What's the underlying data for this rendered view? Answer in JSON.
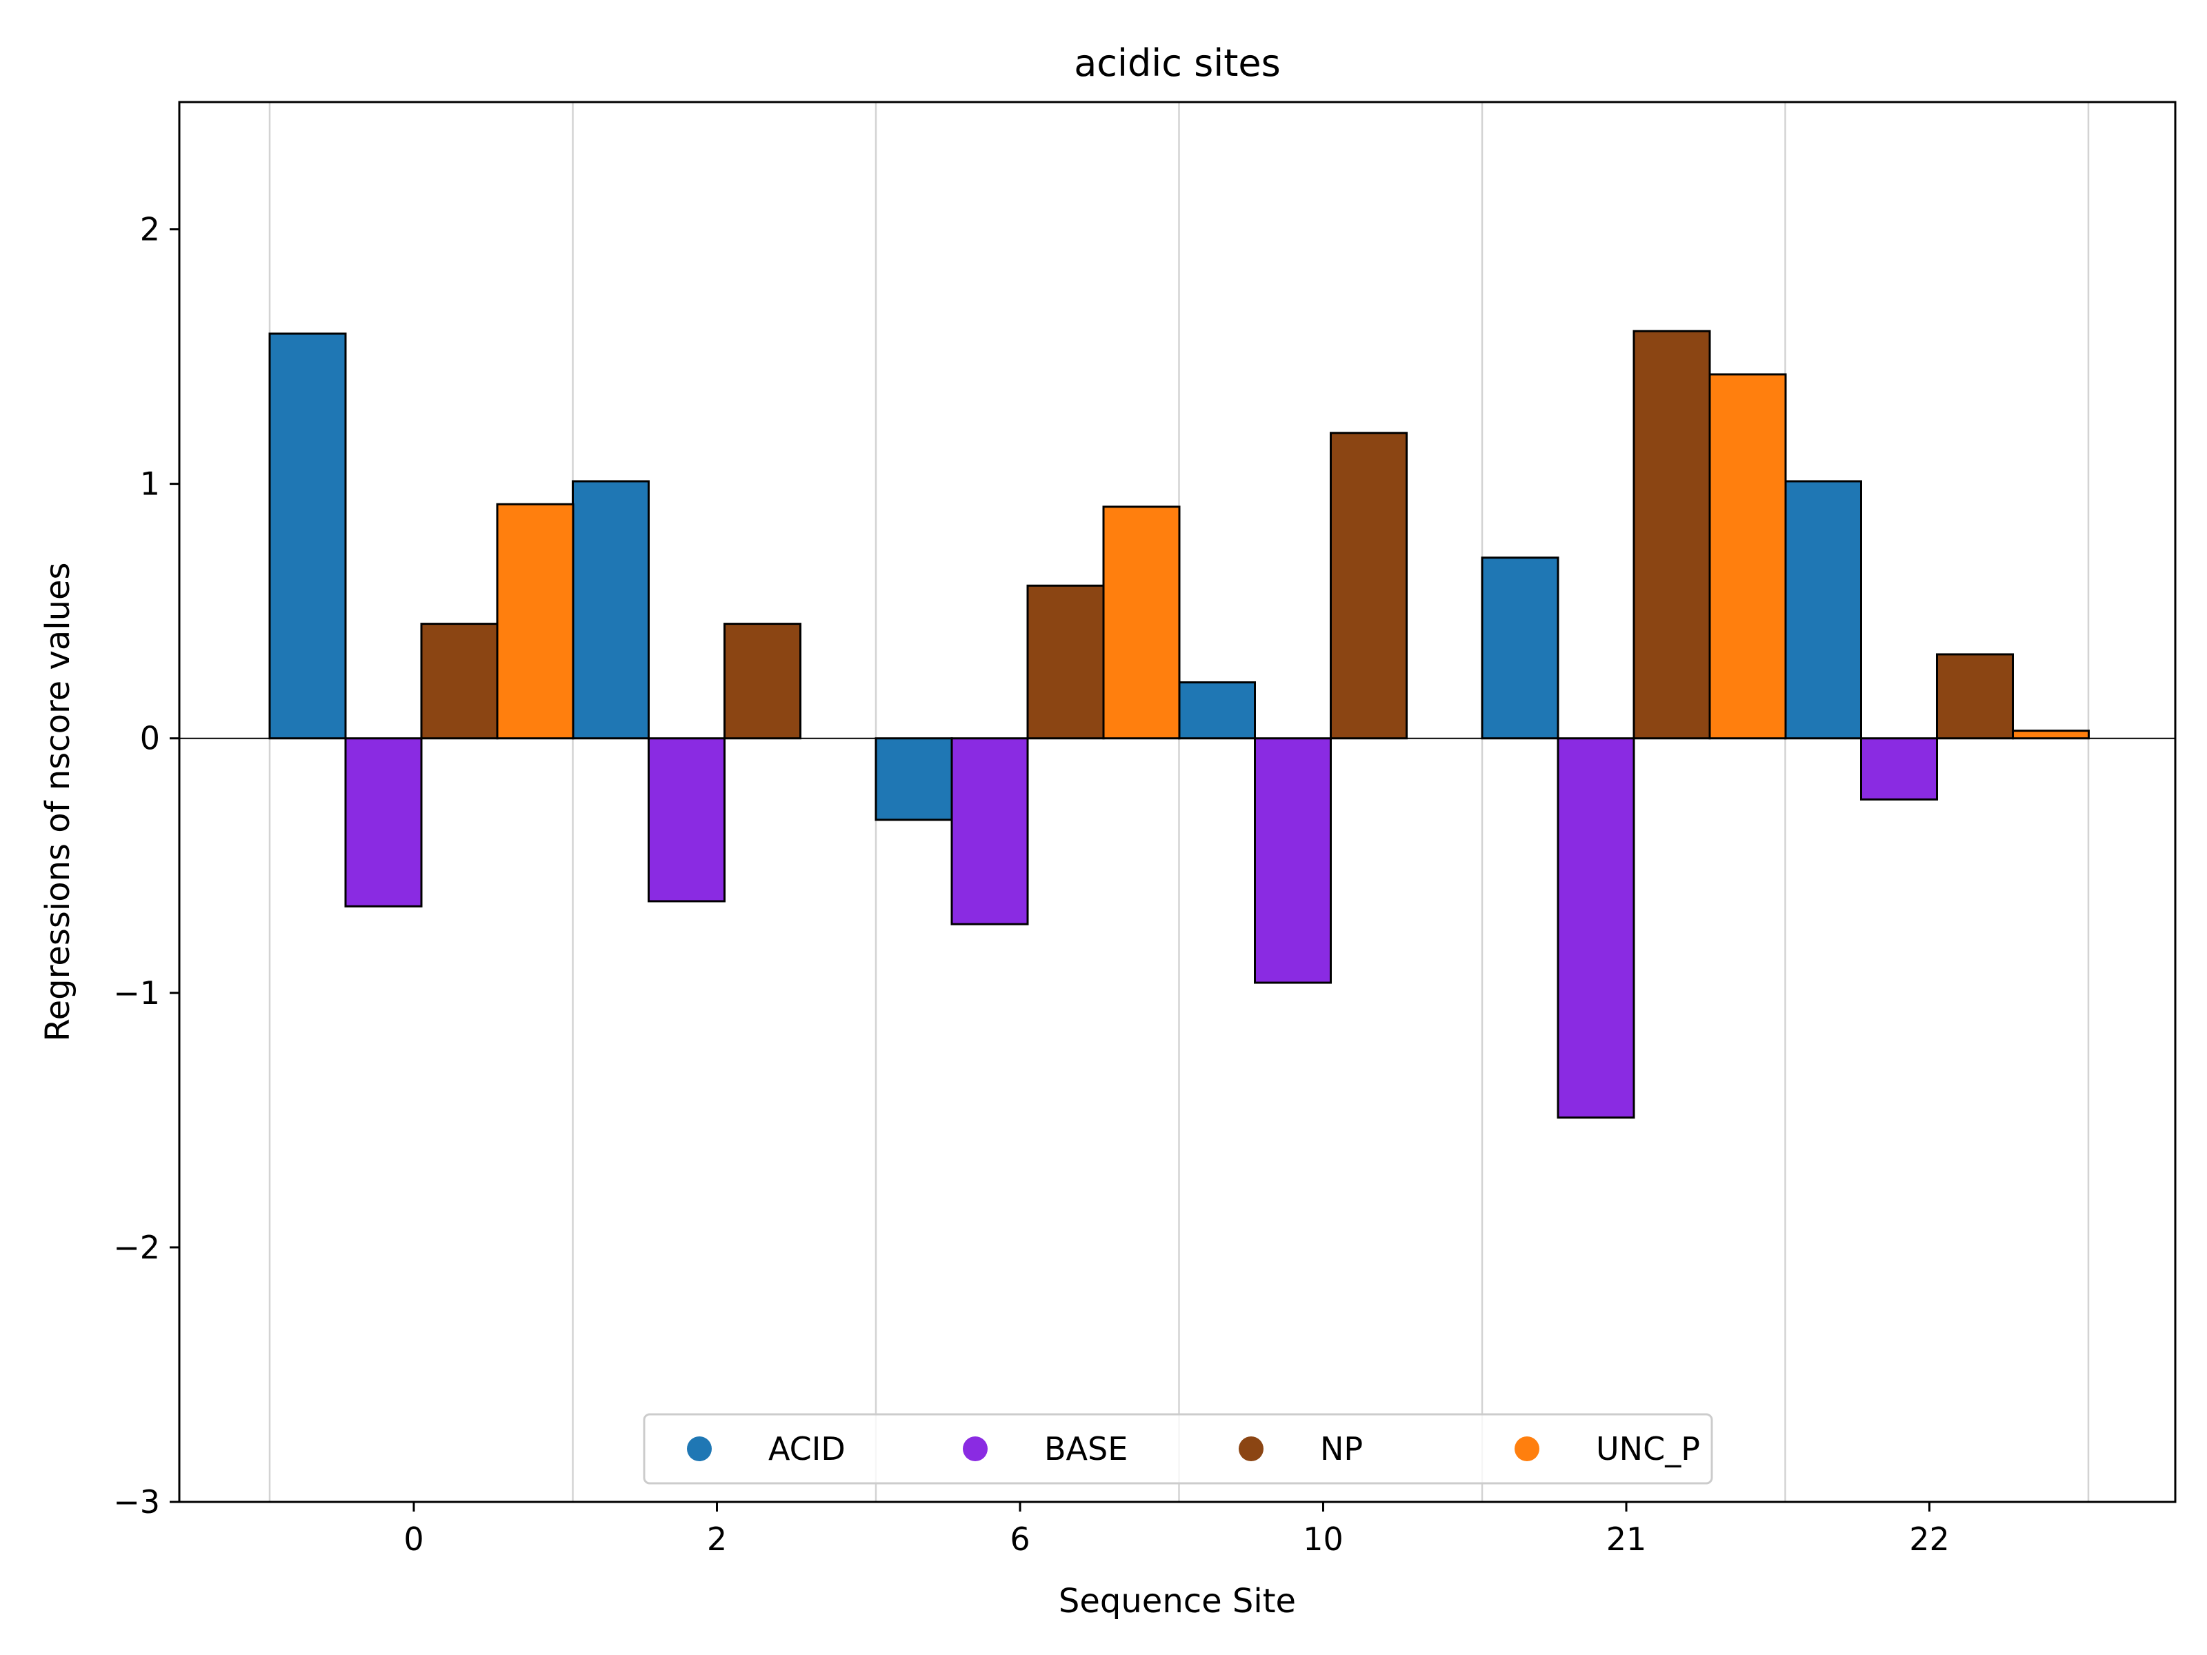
{
  "chart_data": {
    "type": "bar",
    "title": "acidic sites",
    "xlabel": "Sequence Site",
    "ylabel": "Regressions of nscore values",
    "categories": [
      "0",
      "2",
      "6",
      "10",
      "21",
      "22"
    ],
    "ylim": [
      -3,
      2.5
    ],
    "yticks": [
      2,
      1,
      0,
      -1,
      -2,
      -3
    ],
    "ytick_labels": [
      "2",
      "1",
      "0",
      "−1",
      "−2",
      "−3"
    ],
    "grid": "vertical",
    "legend_position": "lower center",
    "series": [
      {
        "name": "ACID",
        "color": "#1f77b4",
        "values": [
          1.59,
          1.01,
          -0.32,
          0.22,
          0.71,
          1.01
        ]
      },
      {
        "name": "BASE",
        "color": "#8a2be2",
        "values": [
          -0.66,
          -0.64,
          -0.73,
          -0.96,
          -1.49,
          -0.24
        ]
      },
      {
        "name": "NP",
        "color": "#8b4513",
        "values": [
          0.45,
          0.45,
          0.6,
          1.2,
          1.6,
          0.33
        ]
      },
      {
        "name": "UNC_P",
        "color": "#ff7f0e",
        "values": [
          0.92,
          null,
          0.91,
          null,
          1.43,
          0.03
        ]
      }
    ]
  }
}
